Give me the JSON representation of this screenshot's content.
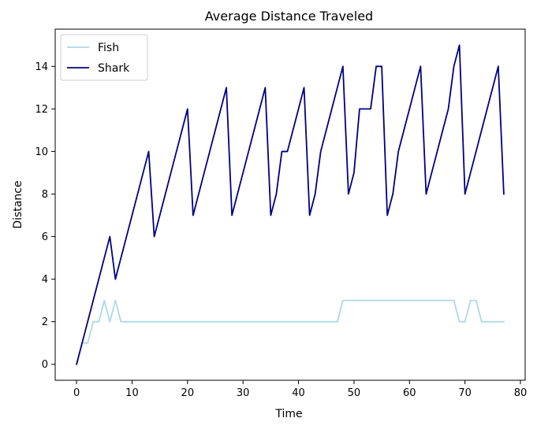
{
  "chart_data": {
    "type": "line",
    "title": "Average Distance Traveled",
    "xlabel": "Time",
    "ylabel": "Distance",
    "xlim": [
      -3.85,
      80.85
    ],
    "ylim": [
      -0.75,
      15.75
    ],
    "xticks": [
      0,
      10,
      20,
      30,
      40,
      50,
      60,
      70,
      80
    ],
    "yticks": [
      0,
      2,
      4,
      6,
      8,
      10,
      12,
      14
    ],
    "grid": false,
    "legend_position": "top-left",
    "colors": {
      "Fish": "#add8e6",
      "Shark": "#000080"
    },
    "series": [
      {
        "name": "Fish",
        "x": [
          0,
          1,
          2,
          3,
          4,
          5,
          6,
          7,
          8,
          9,
          10,
          11,
          12,
          13,
          14,
          15,
          16,
          17,
          18,
          19,
          20,
          21,
          22,
          23,
          24,
          25,
          26,
          27,
          28,
          29,
          30,
          31,
          32,
          33,
          34,
          35,
          36,
          37,
          38,
          39,
          40,
          41,
          42,
          43,
          44,
          45,
          46,
          47,
          48,
          49,
          50,
          51,
          52,
          53,
          54,
          55,
          56,
          57,
          58,
          59,
          60,
          61,
          62,
          63,
          64,
          65,
          66,
          67,
          68,
          69,
          70,
          71,
          72,
          73,
          74,
          75,
          76,
          77
        ],
        "values": [
          0,
          1,
          1,
          2,
          2,
          3,
          2,
          3,
          2,
          2,
          2,
          2,
          2,
          2,
          2,
          2,
          2,
          2,
          2,
          2,
          2,
          2,
          2,
          2,
          2,
          2,
          2,
          2,
          2,
          2,
          2,
          2,
          2,
          2,
          2,
          2,
          2,
          2,
          2,
          2,
          2,
          2,
          2,
          2,
          2,
          2,
          2,
          2,
          3,
          3,
          3,
          3,
          3,
          3,
          3,
          3,
          3,
          3,
          3,
          3,
          3,
          3,
          3,
          3,
          3,
          3,
          3,
          3,
          3,
          2,
          2,
          3,
          3,
          2,
          2,
          2,
          2,
          2
        ]
      },
      {
        "name": "Shark",
        "x": [
          0,
          1,
          2,
          3,
          4,
          5,
          6,
          7,
          8,
          9,
          10,
          11,
          12,
          13,
          14,
          15,
          16,
          17,
          18,
          19,
          20,
          21,
          22,
          23,
          24,
          25,
          26,
          27,
          28,
          29,
          30,
          31,
          32,
          33,
          34,
          35,
          36,
          37,
          38,
          39,
          40,
          41,
          42,
          43,
          44,
          45,
          46,
          47,
          48,
          49,
          50,
          51,
          52,
          53,
          54,
          55,
          56,
          57,
          58,
          59,
          60,
          61,
          62,
          63,
          64,
          65,
          66,
          67,
          68,
          69,
          70,
          71,
          72,
          73,
          74,
          75,
          76,
          77
        ],
        "values": [
          0,
          1,
          2,
          3,
          4,
          5,
          6,
          4,
          5,
          6,
          7,
          8,
          9,
          10,
          6,
          7,
          8,
          9,
          10,
          11,
          12,
          7,
          8,
          9,
          10,
          11,
          12,
          13,
          7,
          8,
          9,
          10,
          11,
          12,
          13,
          7,
          8,
          10,
          10,
          11,
          12,
          13,
          7,
          8,
          10,
          11,
          12,
          13,
          14,
          8,
          9,
          12,
          12,
          12,
          14,
          14,
          7,
          8,
          10,
          11,
          12,
          13,
          14,
          8,
          9,
          10,
          11,
          12,
          14,
          15,
          8,
          9,
          10,
          11,
          12,
          13,
          14,
          8
        ]
      }
    ]
  }
}
